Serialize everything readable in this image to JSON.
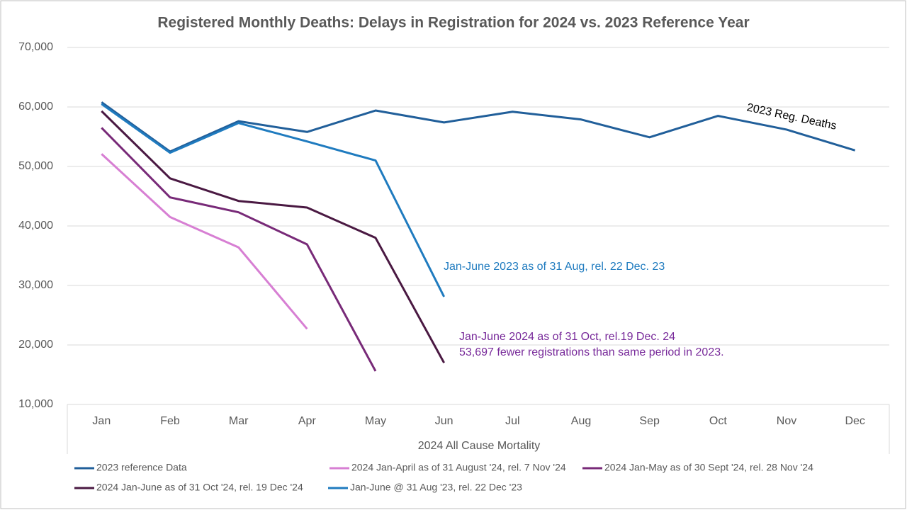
{
  "chart_data": {
    "type": "line",
    "title": "Registered Monthly Deaths: Delays in Registration for 2024 vs. 2023 Reference Year",
    "x_label": "2024 All Cause Mortality",
    "categories": [
      "Jan",
      "Feb",
      "Mar",
      "Apr",
      "May",
      "Jun",
      "Jul",
      "Aug",
      "Sep",
      "Oct",
      "Nov",
      "Dec"
    ],
    "ylim": [
      10000,
      70000
    ],
    "yticks": [
      {
        "value": 10000,
        "label": "10,000"
      },
      {
        "value": 20000,
        "label": "20,000"
      },
      {
        "value": 30000,
        "label": "30,000"
      },
      {
        "value": 40000,
        "label": "40,000"
      },
      {
        "value": 50000,
        "label": "50,000"
      },
      {
        "value": 60000,
        "label": "60,000"
      },
      {
        "value": 70000,
        "label": "70,000"
      }
    ],
    "grid": true,
    "series": [
      {
        "name": "2023 reference Data",
        "color": "#215f9a",
        "values": [
          60800,
          52500,
          57600,
          55800,
          59400,
          57400,
          59200,
          57900,
          54900,
          58500,
          56200,
          52700
        ]
      },
      {
        "name": "2024 Jan-April as of 31 August '24, rel. 7 Nov '24",
        "color": "#d77fd3",
        "values": [
          52100,
          41500,
          36400,
          22700,
          null,
          null,
          null,
          null,
          null,
          null,
          null,
          null
        ]
      },
      {
        "name": "2024 Jan-May as of 30 Sept '24, rel. 28 Nov '24",
        "color": "#782a78",
        "values": [
          56500,
          44800,
          42300,
          36900,
          15600,
          null,
          null,
          null,
          null,
          null,
          null,
          null
        ]
      },
      {
        "name": "2024 Jan-June as of 31 Oct '24, rel. 19 Dec '24",
        "color": "#4a1942",
        "values": [
          59300,
          48000,
          44200,
          43100,
          38000,
          17000,
          null,
          null,
          null,
          null,
          null,
          null
        ]
      },
      {
        "name": "Jan-June @ 31 Aug '23, rel. 22 Dec '23",
        "color": "#1f7bbf",
        "values": [
          60500,
          52300,
          57300,
          54200,
          51000,
          28100,
          null,
          null,
          null,
          null,
          null,
          null
        ]
      }
    ],
    "annotations": [
      {
        "text": "2023 Reg. Deaths",
        "color": "#000000"
      },
      {
        "text": "Jan-June 2023 as of 31 Aug, rel. 22 Dec. 23",
        "color": "#1f7bbf"
      },
      {
        "text": "Jan-June 2024 as of 31 Oct, rel.19 Dec. 24",
        "color": "#782a9a"
      },
      {
        "text": "53,697 fewer registrations than same period in 2023.",
        "color": "#782a9a"
      }
    ]
  }
}
